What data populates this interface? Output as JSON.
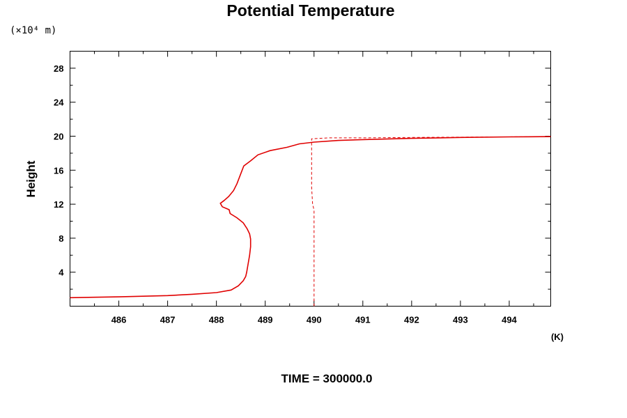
{
  "chart_data": {
    "type": "line",
    "title": "Potential Temperature",
    "ylabel": "Height",
    "yunit": "(×10⁴ m)",
    "xunit": "(K)",
    "footer": "TIME = 300000.0",
    "xlim": [
      485,
      494.85
    ],
    "ylim": [
      0,
      30
    ],
    "xticks": [
      486,
      487,
      488,
      489,
      490,
      491,
      492,
      493,
      494
    ],
    "yticks": [
      4,
      8,
      12,
      16,
      20,
      24,
      28
    ],
    "xtick_labels": [
      "486",
      "487",
      "488",
      "489",
      "490",
      "491",
      "492",
      "493",
      "494"
    ],
    "ytick_labels": [
      "4",
      "8",
      "12",
      "16",
      "20",
      "24",
      "28"
    ],
    "grid": false,
    "line_color": "#e00000",
    "series": [
      {
        "style": "solid",
        "points": [
          [
            485.0,
            1.0
          ],
          [
            486.0,
            1.1
          ],
          [
            487.0,
            1.25
          ],
          [
            487.5,
            1.4
          ],
          [
            488.0,
            1.6
          ],
          [
            488.3,
            1.9
          ],
          [
            488.45,
            2.4
          ],
          [
            488.55,
            3.0
          ],
          [
            488.6,
            3.5
          ],
          [
            488.62,
            4.0
          ],
          [
            488.65,
            5.0
          ],
          [
            488.68,
            6.0
          ],
          [
            488.7,
            7.0
          ],
          [
            488.7,
            7.9
          ],
          [
            488.68,
            8.5
          ],
          [
            488.63,
            9.1
          ],
          [
            488.55,
            9.8
          ],
          [
            488.42,
            10.4
          ],
          [
            488.28,
            10.9
          ],
          [
            488.26,
            11.35
          ],
          [
            488.12,
            11.7
          ],
          [
            488.08,
            12.1
          ],
          [
            488.15,
            12.4
          ],
          [
            488.25,
            12.9
          ],
          [
            488.35,
            13.6
          ],
          [
            488.42,
            14.4
          ],
          [
            488.48,
            15.3
          ],
          [
            488.56,
            16.5
          ],
          [
            488.7,
            17.1
          ],
          [
            488.85,
            17.8
          ],
          [
            489.1,
            18.3
          ],
          [
            489.45,
            18.7
          ],
          [
            489.7,
            19.1
          ],
          [
            490.0,
            19.3
          ],
          [
            490.5,
            19.5
          ],
          [
            491.0,
            19.6
          ],
          [
            492.0,
            19.75
          ],
          [
            493.0,
            19.85
          ],
          [
            494.0,
            19.92
          ],
          [
            494.85,
            19.95
          ]
        ]
      },
      {
        "style": "dashed",
        "points": [
          [
            490.0,
            0.0
          ],
          [
            490.0,
            11.3
          ],
          [
            489.97,
            12.0
          ],
          [
            489.95,
            14.0
          ],
          [
            489.95,
            18.0
          ],
          [
            489.95,
            19.7
          ],
          [
            490.3,
            19.8
          ],
          [
            491.0,
            19.8
          ],
          [
            492.0,
            19.85
          ],
          [
            494.85,
            19.95
          ]
        ]
      }
    ]
  }
}
